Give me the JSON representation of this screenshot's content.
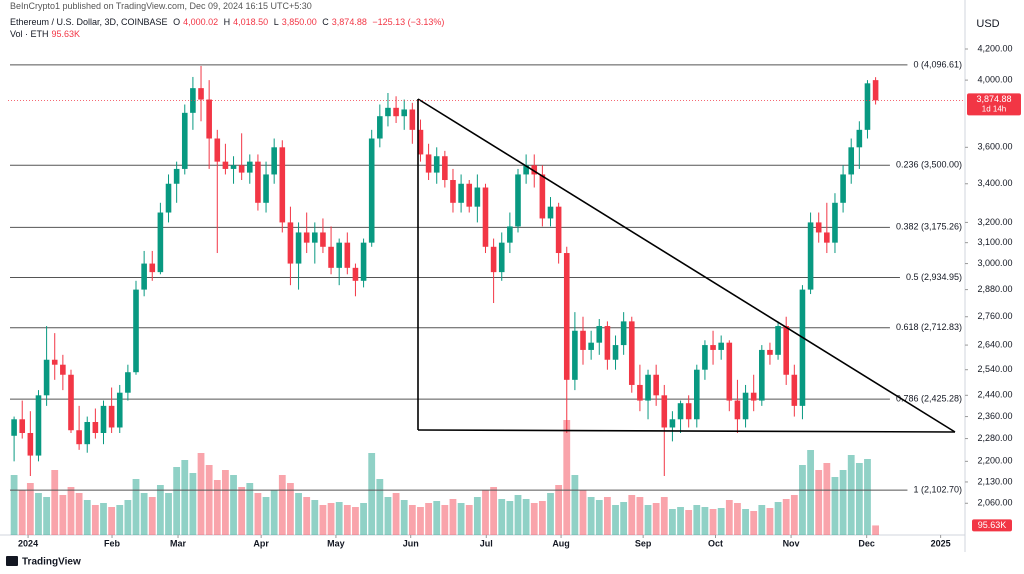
{
  "chart_data": {
    "type": "candlestick",
    "publisher": "BeInCrypto1 published on TradingView.com, Dec 09, 2024 16:15 UTC+5:30",
    "title": "Ethereum / U.S. Dollar, 3D, COINBASE",
    "legend": {
      "o_label": "O",
      "open": "4,000.02",
      "h_label": "H",
      "high": "4,018.50",
      "l_label": "L",
      "low": "3,850.00",
      "c_label": "C",
      "close": "3,874.88",
      "change": "−125.13 (−3.13%)",
      "vol_label": "Vol · ETH",
      "volume": "95.63K"
    },
    "currency": "USD",
    "countdown": "1d 14h",
    "brand": "TradingView",
    "up_color": "#089981",
    "down_color": "#f23645",
    "log_scale": true,
    "ylim": [
      1960,
      4451
    ],
    "y2lim": [
      0,
      5230
    ],
    "xlim": [
      -0.75,
      117
    ],
    "yticks": [
      {
        "value": 4200,
        "label": "4,200.00"
      },
      {
        "value": 4000,
        "label": "4,000.00"
      },
      {
        "value": 3600,
        "label": "3,600.00"
      },
      {
        "value": 3400,
        "label": "3,400.00"
      },
      {
        "value": 3200,
        "label": "3,200.00"
      },
      {
        "value": 3100,
        "label": "3,100.00"
      },
      {
        "value": 3000,
        "label": "3,000.00"
      },
      {
        "value": 2880,
        "label": "2,880.00"
      },
      {
        "value": 2760,
        "label": "2,760.00"
      },
      {
        "value": 2640,
        "label": "2,640.00"
      },
      {
        "value": 2540,
        "label": "2,540.00"
      },
      {
        "value": 2440,
        "label": "2,440.00"
      },
      {
        "value": 2360,
        "label": "2,360.00"
      },
      {
        "value": 2280,
        "label": "2,280.00"
      },
      {
        "value": 2200,
        "label": "2,200.00"
      },
      {
        "value": 2130,
        "label": "2,130.00"
      },
      {
        "value": 2060,
        "label": "2,060.00"
      }
    ],
    "xticks": [
      {
        "value": 1.72,
        "label": "2024"
      },
      {
        "value": 12.05,
        "label": "Feb"
      },
      {
        "value": 20.17,
        "label": "Mar"
      },
      {
        "value": 30.4,
        "label": "Apr"
      },
      {
        "value": 39.6,
        "label": "May"
      },
      {
        "value": 48.8,
        "label": "Jun"
      },
      {
        "value": 58.1,
        "label": "Jul"
      },
      {
        "value": 67.3,
        "label": "Aug"
      },
      {
        "value": 77.4,
        "label": "Sep"
      },
      {
        "value": 86.3,
        "label": "Oct"
      },
      {
        "value": 95.6,
        "label": "Nov"
      },
      {
        "value": 104.9,
        "label": "Dec"
      },
      {
        "value": 114.0,
        "label": "2025"
      }
    ],
    "fib_levels": [
      {
        "value": 4096.61,
        "label": "0 (4,096.61)"
      },
      {
        "value": 3500.0,
        "label": "0.236 (3,500.00)"
      },
      {
        "value": 3175.26,
        "label": "0.382 (3,175.26)"
      },
      {
        "value": 2934.95,
        "label": "0.5 (2,934.95)"
      },
      {
        "value": 2712.83,
        "label": "0.618 (2,712.83)"
      },
      {
        "value": 2425.28,
        "label": "0.786 (2,425.28)"
      },
      {
        "value": 2102.7,
        "label": "1 (2,102.70)"
      }
    ],
    "ohlc": [
      [
        2290,
        2360,
        2200,
        2350
      ],
      [
        2350,
        2420,
        2280,
        2300
      ],
      [
        2300,
        2380,
        2150,
        2220
      ],
      [
        2220,
        2460,
        2200,
        2440
      ],
      [
        2440,
        2720,
        2400,
        2580
      ],
      [
        2580,
        2690,
        2500,
        2560
      ],
      [
        2560,
        2600,
        2460,
        2520
      ],
      [
        2520,
        2540,
        2300,
        2310
      ],
      [
        2310,
        2400,
        2240,
        2260
      ],
      [
        2260,
        2360,
        2230,
        2340
      ],
      [
        2340,
        2390,
        2280,
        2300
      ],
      [
        2300,
        2420,
        2260,
        2400
      ],
      [
        2400,
        2470,
        2300,
        2320
      ],
      [
        2320,
        2480,
        2300,
        2450
      ],
      [
        2450,
        2560,
        2420,
        2530
      ],
      [
        2530,
        2920,
        2520,
        2880
      ],
      [
        2880,
        3060,
        2850,
        3000
      ],
      [
        3000,
        3060,
        2920,
        2960
      ],
      [
        2960,
        3300,
        2950,
        3250
      ],
      [
        3250,
        3450,
        3200,
        3400
      ],
      [
        3400,
        3520,
        3300,
        3480
      ],
      [
        3480,
        3850,
        3450,
        3800
      ],
      [
        3800,
        4020,
        3700,
        3950
      ],
      [
        3950,
        4090,
        3750,
        3880
      ],
      [
        3880,
        4000,
        3480,
        3650
      ],
      [
        3650,
        3700,
        3050,
        3520
      ],
      [
        3520,
        3620,
        3450,
        3480
      ],
      [
        3480,
        3550,
        3400,
        3500
      ],
      [
        3500,
        3680,
        3420,
        3460
      ],
      [
        3460,
        3560,
        3400,
        3520
      ],
      [
        3520,
        3560,
        3260,
        3300
      ],
      [
        3300,
        3520,
        3250,
        3450
      ],
      [
        3450,
        3650,
        3400,
        3600
      ],
      [
        3600,
        3640,
        3150,
        3200
      ],
      [
        3200,
        3280,
        2900,
        3000
      ],
      [
        3000,
        3200,
        2880,
        3150
      ],
      [
        3150,
        3250,
        3050,
        3100
      ],
      [
        3100,
        3200,
        3000,
        3150
      ],
      [
        3150,
        3220,
        3050,
        3080
      ],
      [
        3080,
        3180,
        2950,
        2980
      ],
      [
        2980,
        3120,
        2900,
        3100
      ],
      [
        3100,
        3150,
        2950,
        2980
      ],
      [
        2980,
        3000,
        2850,
        2920
      ],
      [
        2920,
        3120,
        2890,
        3100
      ],
      [
        3100,
        3700,
        3080,
        3650
      ],
      [
        3650,
        3850,
        3600,
        3780
      ],
      [
        3780,
        3920,
        3720,
        3830
      ],
      [
        3830,
        3900,
        3740,
        3780
      ],
      [
        3780,
        3880,
        3700,
        3820
      ],
      [
        3820,
        3860,
        3620,
        3700
      ],
      [
        3700,
        3760,
        3520,
        3560
      ],
      [
        3560,
        3620,
        3420,
        3460
      ],
      [
        3460,
        3600,
        3400,
        3550
      ],
      [
        3550,
        3580,
        3380,
        3420
      ],
      [
        3420,
        3480,
        3250,
        3300
      ],
      [
        3300,
        3450,
        3250,
        3400
      ],
      [
        3400,
        3420,
        3250,
        3280
      ],
      [
        3280,
        3450,
        3200,
        3380
      ],
      [
        3380,
        3400,
        3050,
        3080
      ],
      [
        3080,
        3120,
        2820,
        2960
      ],
      [
        2960,
        3150,
        2920,
        3100
      ],
      [
        3100,
        3250,
        3050,
        3180
      ],
      [
        3180,
        3480,
        3150,
        3450
      ],
      [
        3450,
        3560,
        3400,
        3500
      ],
      [
        3500,
        3560,
        3380,
        3450
      ],
      [
        3450,
        3500,
        3180,
        3220
      ],
      [
        3220,
        3330,
        3180,
        3280
      ],
      [
        3280,
        3300,
        3000,
        3050
      ],
      [
        3050,
        3080,
        2300,
        2500
      ],
      [
        2500,
        2780,
        2460,
        2700
      ],
      [
        2700,
        2760,
        2560,
        2620
      ],
      [
        2620,
        2700,
        2580,
        2650
      ],
      [
        2650,
        2750,
        2600,
        2720
      ],
      [
        2720,
        2740,
        2540,
        2580
      ],
      [
        2580,
        2680,
        2540,
        2640
      ],
      [
        2640,
        2780,
        2600,
        2740
      ],
      [
        2740,
        2760,
        2450,
        2480
      ],
      [
        2480,
        2560,
        2380,
        2420
      ],
      [
        2420,
        2540,
        2350,
        2520
      ],
      [
        2520,
        2560,
        2400,
        2440
      ],
      [
        2440,
        2480,
        2150,
        2320
      ],
      [
        2320,
        2380,
        2270,
        2350
      ],
      [
        2350,
        2420,
        2300,
        2410
      ],
      [
        2410,
        2440,
        2320,
        2350
      ],
      [
        2350,
        2560,
        2320,
        2540
      ],
      [
        2540,
        2660,
        2500,
        2640
      ],
      [
        2640,
        2700,
        2560,
        2620
      ],
      [
        2620,
        2680,
        2580,
        2650
      ],
      [
        2650,
        2660,
        2380,
        2420
      ],
      [
        2420,
        2500,
        2300,
        2350
      ],
      [
        2350,
        2480,
        2320,
        2450
      ],
      [
        2450,
        2520,
        2380,
        2420
      ],
      [
        2420,
        2640,
        2400,
        2620
      ],
      [
        2620,
        2650,
        2560,
        2600
      ],
      [
        2600,
        2740,
        2580,
        2720
      ],
      [
        2720,
        2760,
        2480,
        2520
      ],
      [
        2520,
        2560,
        2360,
        2400
      ],
      [
        2400,
        2900,
        2350,
        2880
      ],
      [
        2880,
        3250,
        2860,
        3200
      ],
      [
        3200,
        3250,
        3100,
        3150
      ],
      [
        3150,
        3300,
        3050,
        3100
      ],
      [
        3100,
        3350,
        3050,
        3300
      ],
      [
        3300,
        3500,
        3250,
        3450
      ],
      [
        3450,
        3650,
        3400,
        3600
      ],
      [
        3600,
        3750,
        3480,
        3700
      ],
      [
        3700,
        4000,
        3650,
        3980
      ],
      [
        4000.02,
        4018.5,
        3850.0,
        3874.88
      ]
    ],
    "volume": [
      600,
      450,
      520,
      420,
      380,
      650,
      400,
      480,
      420,
      350,
      300,
      320,
      280,
      300,
      350,
      560,
      420,
      380,
      500,
      420,
      680,
      750,
      620,
      820,
      700,
      550,
      650,
      600,
      480,
      520,
      420,
      380,
      450,
      600,
      520,
      420,
      380,
      350,
      300,
      320,
      330,
      300,
      280,
      320,
      820,
      560,
      380,
      420,
      350,
      300,
      280,
      320,
      340,
      300,
      360,
      320,
      300,
      380,
      450,
      480,
      360,
      340,
      400,
      360,
      320,
      340,
      420,
      500,
      1150,
      600,
      450,
      380,
      350,
      380,
      300,
      330,
      400,
      380,
      300,
      320,
      380,
      260,
      280,
      250,
      300,
      280,
      260,
      270,
      350,
      320,
      260,
      240,
      300,
      270,
      330,
      360,
      400,
      700,
      850,
      650,
      720,
      580,
      650,
      800,
      720,
      760,
      95.63
    ]
  }
}
